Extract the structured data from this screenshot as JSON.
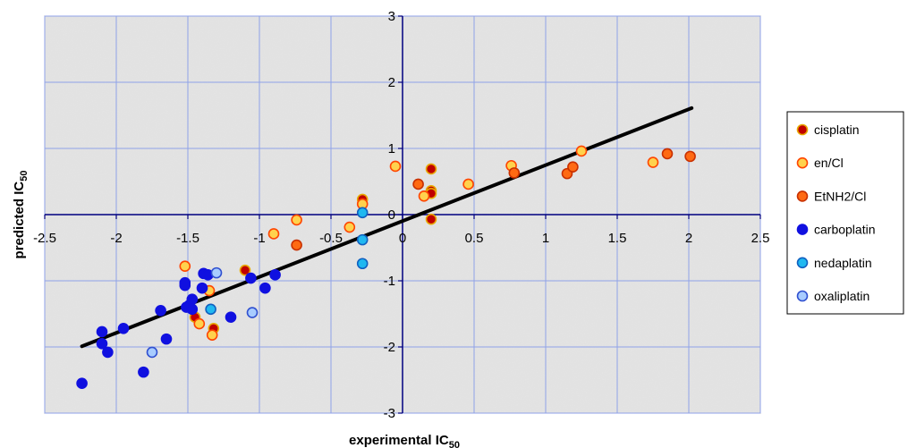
{
  "chart_data": {
    "type": "scatter",
    "title": "",
    "xlabel": {
      "main": "experimental IC",
      "sub": "50"
    },
    "ylabel": {
      "main": "predicted IC",
      "sub": "50"
    },
    "xlim": [
      -2.5,
      2.5
    ],
    "ylim": [
      -3,
      3
    ],
    "x_ticks": [
      -2.5,
      -2,
      -1.5,
      -1,
      -0.5,
      0,
      0.5,
      1,
      1.5,
      2,
      2.5
    ],
    "y_ticks": [
      -3,
      -2,
      -1,
      0,
      1,
      2,
      3
    ],
    "x_tick_labels": [
      "-2.5",
      "-2",
      "-1.5",
      "-1",
      "-0.5",
      "0",
      "0.5",
      "1",
      "1.5",
      "2",
      "2.5"
    ],
    "y_tick_labels": [
      "-3",
      "-2",
      "-1",
      "0",
      "1",
      "2",
      "3"
    ],
    "grid": true,
    "legend_position": "right",
    "series": [
      {
        "name": "cisplatin",
        "fill": "#c00000",
        "edge": "#e8a800",
        "points": [
          [
            -1.1,
            -0.84
          ],
          [
            -1.45,
            -1.55
          ],
          [
            -1.32,
            -1.72
          ],
          [
            -0.28,
            0.23
          ],
          [
            0.2,
            0.69
          ],
          [
            0.2,
            0.36
          ],
          [
            0.2,
            0.32
          ],
          [
            0.2,
            -0.07
          ]
        ]
      },
      {
        "name": "en/Cl",
        "fill": "#ffd24d",
        "edge": "#ff4500",
        "points": [
          [
            -1.52,
            -0.78
          ],
          [
            -1.35,
            -1.15
          ],
          [
            -1.42,
            -1.65
          ],
          [
            -1.33,
            -1.82
          ],
          [
            -0.9,
            -0.29
          ],
          [
            -0.74,
            -0.08
          ],
          [
            -0.37,
            -0.19
          ],
          [
            -0.28,
            0.16
          ],
          [
            -0.05,
            0.73
          ],
          [
            0.15,
            0.28
          ],
          [
            0.46,
            0.46
          ],
          [
            0.76,
            0.74
          ],
          [
            1.25,
            0.96
          ],
          [
            1.75,
            0.79
          ]
        ]
      },
      {
        "name": "EtNH2/Cl",
        "fill": "#ff6a13",
        "edge": "#c83000",
        "points": [
          [
            -0.74,
            -0.46
          ],
          [
            0.11,
            0.46
          ],
          [
            0.78,
            0.63
          ],
          [
            1.15,
            0.62
          ],
          [
            1.19,
            0.72
          ],
          [
            1.85,
            0.92
          ],
          [
            2.01,
            0.88
          ]
        ]
      },
      {
        "name": "carboplatin",
        "fill": "#1010e0",
        "edge": "#1010e0",
        "points": [
          [
            -2.24,
            -2.55
          ],
          [
            -2.1,
            -1.77
          ],
          [
            -2.1,
            -1.95
          ],
          [
            -2.06,
            -2.08
          ],
          [
            -1.95,
            -1.72
          ],
          [
            -1.81,
            -2.38
          ],
          [
            -1.69,
            -1.45
          ],
          [
            -1.65,
            -1.88
          ],
          [
            -1.52,
            -1.03
          ],
          [
            -1.52,
            -1.07
          ],
          [
            -1.51,
            -1.4
          ],
          [
            -1.49,
            -1.37
          ],
          [
            -1.47,
            -1.28
          ],
          [
            -1.47,
            -1.43
          ],
          [
            -1.4,
            -1.11
          ],
          [
            -1.39,
            -0.89
          ],
          [
            -1.36,
            -0.91
          ],
          [
            -1.2,
            -1.55
          ],
          [
            -1.06,
            -0.96
          ],
          [
            -0.96,
            -1.11
          ],
          [
            -0.89,
            -0.91
          ]
        ]
      },
      {
        "name": "nedaplatin",
        "fill": "#20b8f0",
        "edge": "#1060c0",
        "points": [
          [
            -1.34,
            -1.43
          ],
          [
            -0.28,
            0.03
          ],
          [
            -0.28,
            -0.38
          ],
          [
            -0.28,
            -0.74
          ]
        ]
      },
      {
        "name": "oxaliplatin",
        "fill": "#a8ccff",
        "edge": "#3050d0",
        "points": [
          [
            -1.75,
            -2.08
          ],
          [
            -1.3,
            -0.88
          ],
          [
            -1.05,
            -1.48
          ]
        ]
      }
    ],
    "trend_line": {
      "from": [
        -2.24,
        -1.99
      ],
      "to": [
        2.02,
        1.61
      ],
      "color": "#000000"
    }
  }
}
